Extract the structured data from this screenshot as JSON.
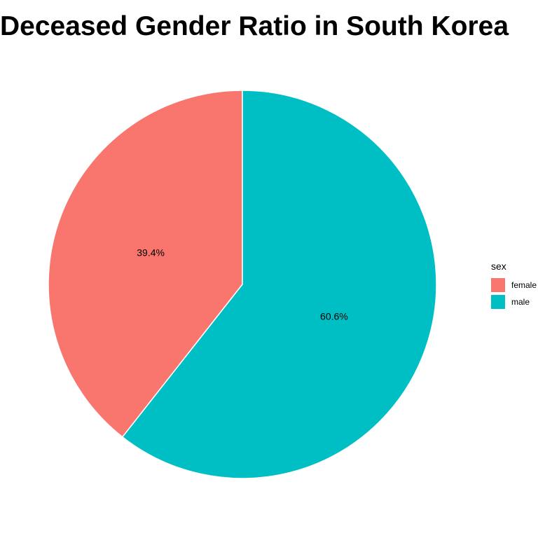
{
  "chart_data": {
    "type": "pie",
    "title": "Deceased Gender Ratio in South Korea",
    "categories": [
      "female",
      "male"
    ],
    "values": [
      39.4,
      60.6
    ],
    "labels": [
      "39.4%",
      "60.6%"
    ],
    "colors": [
      "#F8766D",
      "#00BFC4"
    ],
    "legend": {
      "title": "sex",
      "position": "right"
    }
  }
}
